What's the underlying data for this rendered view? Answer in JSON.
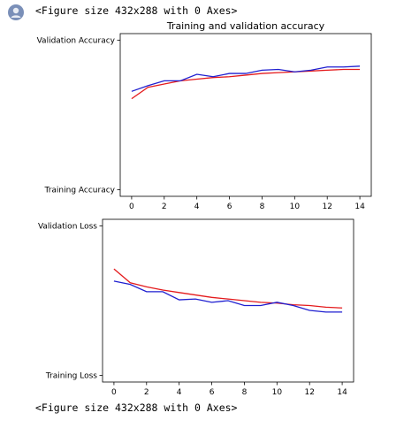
{
  "cell_output": {
    "avatar_icon": "user-avatar-icon",
    "top_text": "<Figure size 432x288 with 0 Axes>",
    "bottom_text": "<Figure size 432x288 with 0 Axes>"
  },
  "chart_data": [
    {
      "type": "line",
      "title": "Training and validation accuracy",
      "xlabel": "",
      "ylabel": "",
      "x": [
        0,
        1,
        2,
        3,
        4,
        5,
        6,
        7,
        8,
        9,
        10,
        11,
        12,
        13,
        14
      ],
      "xticks": [
        "0",
        "2",
        "4",
        "6",
        "8",
        "10",
        "12",
        "14"
      ],
      "xlim": [
        -0.7,
        14.7
      ],
      "ylim": [
        0,
        1
      ],
      "ytick_labels": [
        {
          "label": "Training Accuracy",
          "value": 0.04
        },
        {
          "label": "Validation Accuracy",
          "value": 0.96
        }
      ],
      "grid": false,
      "legend": false,
      "series": [
        {
          "color": "#e41a1c",
          "values": [
            0.6,
            0.67,
            0.69,
            0.71,
            0.72,
            0.73,
            0.735,
            0.745,
            0.755,
            0.76,
            0.765,
            0.77,
            0.775,
            0.78,
            0.78
          ]
        },
        {
          "color": "#1f1fd0",
          "values": [
            0.645,
            0.68,
            0.71,
            0.71,
            0.75,
            0.735,
            0.755,
            0.755,
            0.775,
            0.78,
            0.765,
            0.775,
            0.795,
            0.795,
            0.8
          ]
        }
      ]
    },
    {
      "type": "line",
      "title": "",
      "xlabel": "",
      "ylabel": "",
      "x": [
        0,
        1,
        2,
        3,
        4,
        5,
        6,
        7,
        8,
        9,
        10,
        11,
        12,
        13,
        14
      ],
      "xticks": [
        "0",
        "2",
        "4",
        "6",
        "8",
        "10",
        "12",
        "14"
      ],
      "xlim": [
        -0.7,
        14.7
      ],
      "ylim": [
        0,
        1
      ],
      "ytick_labels": [
        {
          "label": "Training Loss",
          "value": 0.04
        },
        {
          "label": "Validation Loss",
          "value": 0.96
        }
      ],
      "grid": false,
      "legend": false,
      "series": [
        {
          "color": "#e41a1c",
          "values": [
            0.695,
            0.61,
            0.585,
            0.565,
            0.55,
            0.535,
            0.52,
            0.51,
            0.5,
            0.49,
            0.485,
            0.475,
            0.47,
            0.46,
            0.455
          ]
        },
        {
          "color": "#1f1fd0",
          "values": [
            0.62,
            0.6,
            0.555,
            0.555,
            0.505,
            0.51,
            0.49,
            0.5,
            0.47,
            0.47,
            0.49,
            0.47,
            0.44,
            0.43,
            0.43
          ]
        }
      ]
    }
  ]
}
